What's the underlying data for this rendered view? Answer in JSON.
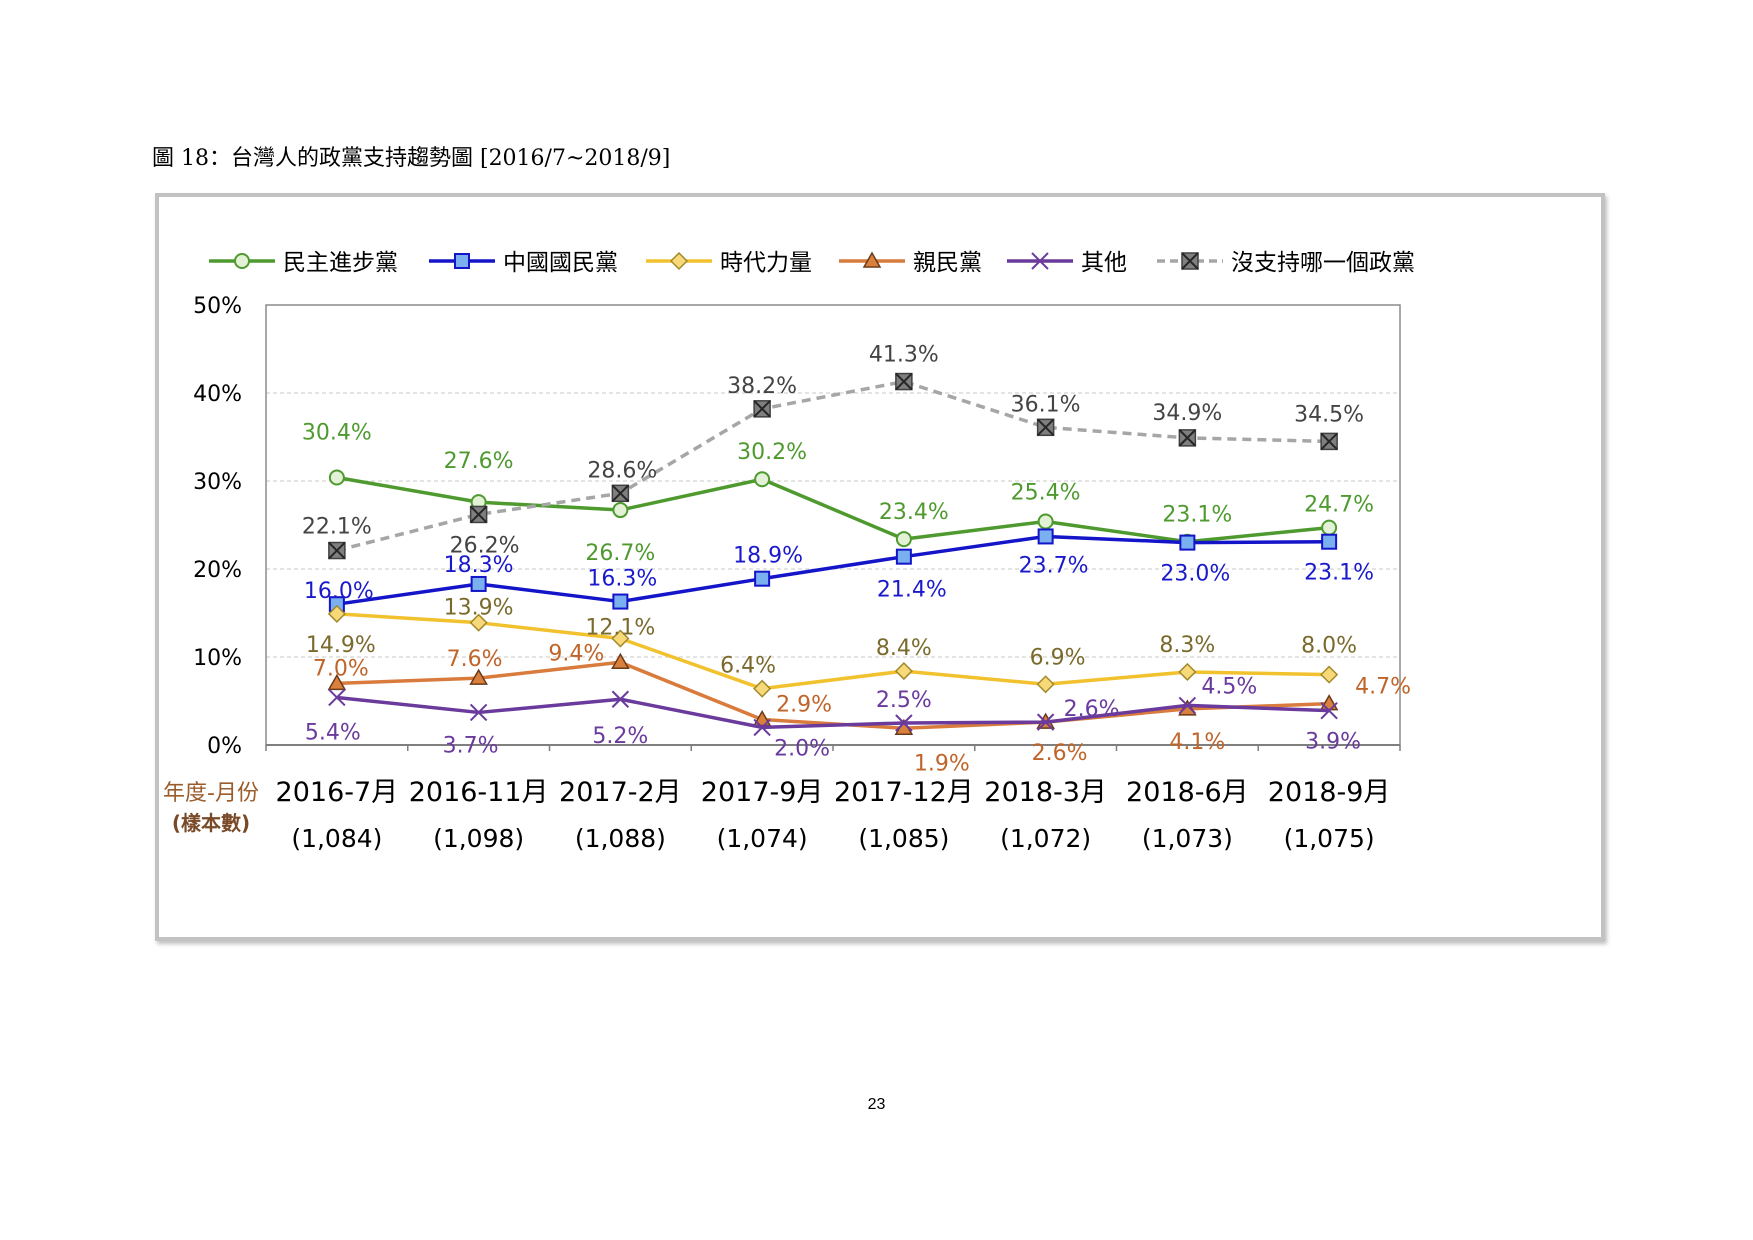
{
  "figure_title": "圖 18：台灣人的政黨支持趨勢圖 [2016/7~2018/9]",
  "page_number": "23",
  "chart_data": {
    "type": "line",
    "title": "",
    "xlabel": "年度-月份",
    "xlabel_sub": "(樣本數)",
    "ylabel": "",
    "ylim": [
      0,
      50
    ],
    "y_ticks": [
      "0%",
      "10%",
      "20%",
      "30%",
      "40%",
      "50%"
    ],
    "grid": "horizontal dashed",
    "legend_position": "top",
    "categories": [
      "2016-7月",
      "2016-11月",
      "2017-2月",
      "2017-9月",
      "2017-12月",
      "2018-3月",
      "2018-6月",
      "2018-9月"
    ],
    "sample_sizes": [
      "(1,084)",
      "(1,098)",
      "(1,088)",
      "(1,074)",
      "(1,085)",
      "(1,072)",
      "(1,073)",
      "(1,075)"
    ],
    "series": [
      {
        "name": "民主進步黨",
        "color": "#4e9a2f",
        "label_color": "#4e9a2f",
        "marker": "circle",
        "dashed": false,
        "values": [
          30.4,
          27.6,
          26.7,
          30.2,
          23.4,
          25.4,
          23.1,
          24.7
        ],
        "labels": [
          "30.4%",
          "27.6%",
          "26.7%",
          "30.2%",
          "23.4%",
          "25.4%",
          "23.1%",
          "24.7%"
        ]
      },
      {
        "name": "中國國民黨",
        "color": "#1414c8",
        "label_color": "#1a1acc",
        "marker": "square",
        "dashed": false,
        "values": [
          16.0,
          18.3,
          16.3,
          18.9,
          21.4,
          23.7,
          23.0,
          23.1
        ],
        "labels": [
          "16.0%",
          "18.3%",
          "16.3%",
          "18.9%",
          "21.4%",
          "23.7%",
          "23.0%",
          "23.1%"
        ]
      },
      {
        "name": "時代力量",
        "color": "#f2c12e",
        "label_color": "#7a6a2c",
        "marker": "diamond",
        "dashed": false,
        "values": [
          14.9,
          13.9,
          12.1,
          6.4,
          8.4,
          6.9,
          8.3,
          8.0
        ],
        "labels": [
          "14.9%",
          "13.9%",
          "12.1%",
          "6.4%",
          "8.4%",
          "6.9%",
          "8.3%",
          "8.0%"
        ]
      },
      {
        "name": "親民黨",
        "color": "#d97b3c",
        "label_color": "#c0652a",
        "marker": "triangle",
        "dashed": false,
        "values": [
          7.0,
          7.6,
          9.4,
          2.9,
          1.9,
          2.6,
          4.1,
          4.7
        ],
        "labels": [
          "7.0%",
          "7.6%",
          "9.4%",
          "2.9%",
          "1.9%",
          "2.6%",
          "4.1%",
          "4.7%"
        ]
      },
      {
        "name": "其他",
        "color": "#6a3a9c",
        "label_color": "#6a3a9c",
        "marker": "x",
        "dashed": false,
        "values": [
          5.4,
          3.7,
          5.2,
          2.0,
          2.5,
          2.6,
          4.5,
          3.9
        ],
        "labels": [
          "5.4%",
          "3.7%",
          "5.2%",
          "2.0%",
          "2.5%",
          "2.6%",
          "4.5%",
          "3.9%"
        ]
      },
      {
        "name": "沒支持哪一個政黨",
        "color": "#a6a6a6",
        "label_color": "#444444",
        "marker": "xbox",
        "dashed": true,
        "values": [
          22.1,
          26.2,
          28.6,
          38.2,
          41.3,
          36.1,
          34.9,
          34.5
        ],
        "labels": [
          "22.1%",
          "26.2%",
          "28.6%",
          "38.2%",
          "41.3%",
          "36.1%",
          "34.9%",
          "34.5%"
        ]
      }
    ]
  }
}
